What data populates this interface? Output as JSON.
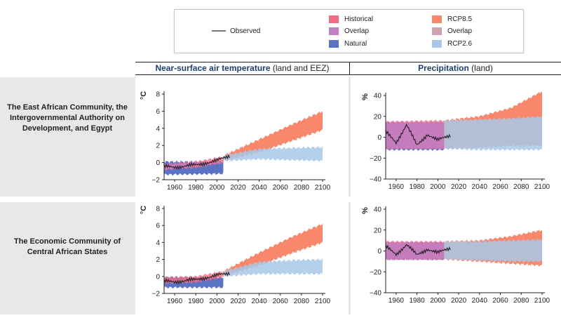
{
  "legend": {
    "observed": "Observed",
    "items": [
      {
        "label": "Historical",
        "color": "#f06d84"
      },
      {
        "label": "Overlap",
        "color": "#c37fc4"
      },
      {
        "label": "Natural",
        "color": "#5a73c4"
      },
      {
        "label": "RCP8.5",
        "color": "#f8876c"
      },
      {
        "label": "Overlap",
        "color": "#cfa2ad"
      },
      {
        "label": "RCP2.6",
        "color": "#a8c8e8"
      }
    ]
  },
  "columns": {
    "temperature": {
      "title": "Near-surface air temperature",
      "suffix": " (land and EEZ)"
    },
    "precipitation": {
      "title": "Precipitation",
      "suffix": " (land)"
    }
  },
  "rows": [
    {
      "name": "The East African Community, the Intergovernmental Authority on Development, and Egypt"
    },
    {
      "name": "The Economic Community of Central African States"
    }
  ],
  "chart_data": [
    {
      "id": "r1_temp",
      "type": "area",
      "row": "The East African Community, the Intergovernmental Authority on Development, and Egypt",
      "ylabel": "°C",
      "xlim": [
        1950,
        2100
      ],
      "ylim": [
        -2,
        8
      ],
      "xticks": [
        1960,
        1980,
        2000,
        2020,
        2040,
        2060,
        2080,
        2100
      ],
      "yticks": [
        -2,
        0,
        2,
        4,
        6,
        8
      ],
      "natural": {
        "x": [
          1950,
          2006
        ],
        "lower": [
          -1.4,
          -1.3
        ],
        "upper": [
          0.1,
          0.1
        ]
      },
      "historical": {
        "x": [
          1950,
          1980,
          2006
        ],
        "lower": [
          -0.8,
          -0.6,
          0.0
        ],
        "upper": [
          -0.2,
          0.1,
          0.7
        ]
      },
      "rcp85": {
        "x": [
          2006,
          2040,
          2070,
          2100
        ],
        "lower": [
          0.2,
          1.2,
          2.5,
          3.8
        ],
        "upper": [
          0.8,
          2.7,
          4.4,
          6.0
        ]
      },
      "rcp26": {
        "x": [
          2006,
          2040,
          2070,
          2100
        ],
        "lower": [
          0.2,
          0.4,
          0.3,
          0.2
        ],
        "upper": [
          0.8,
          1.6,
          1.7,
          1.8
        ]
      },
      "observed": {
        "x": [
          1950,
          1960,
          1970,
          1980,
          1990,
          2000,
          2012
        ],
        "y": [
          -0.5,
          -0.5,
          -0.4,
          -0.3,
          0.0,
          0.2,
          0.8
        ]
      }
    },
    {
      "id": "r1_precip",
      "type": "area",
      "row": "The East African Community, the Intergovernmental Authority on Development, and Egypt",
      "ylabel": "%",
      "xlim": [
        1950,
        2100
      ],
      "ylim": [
        -40,
        40
      ],
      "xticks": [
        1960,
        1980,
        2000,
        2020,
        2040,
        2060,
        2080,
        2100
      ],
      "yticks": [
        -40,
        -20,
        0,
        20,
        40
      ],
      "natural": {
        "x": [
          1950,
          2006
        ],
        "lower": [
          -12,
          -12
        ],
        "upper": [
          14,
          14
        ]
      },
      "historical": {
        "x": [
          1950,
          2006
        ],
        "lower": [
          -11,
          -11
        ],
        "upper": [
          15,
          16
        ]
      },
      "rcp85": {
        "x": [
          2006,
          2040,
          2070,
          2100
        ],
        "lower": [
          -11,
          -10,
          -8,
          -8
        ],
        "upper": [
          16,
          20,
          28,
          44
        ]
      },
      "rcp26": {
        "x": [
          2006,
          2040,
          2070,
          2100
        ],
        "lower": [
          -11,
          -12,
          -12,
          -12
        ],
        "upper": [
          16,
          17,
          18,
          20
        ]
      },
      "observed": {
        "x": [
          1950,
          1960,
          1970,
          1980,
          1990,
          2000,
          2012
        ],
        "y": [
          5,
          -5,
          12,
          -8,
          3,
          -3,
          2
        ]
      }
    },
    {
      "id": "r2_temp",
      "type": "area",
      "row": "The Economic Community of Central African States",
      "ylabel": "°C",
      "xlim": [
        1950,
        2100
      ],
      "ylim": [
        -2,
        8
      ],
      "xticks": [
        1960,
        1980,
        2000,
        2020,
        2040,
        2060,
        2080,
        2100
      ],
      "yticks": [
        -2,
        0,
        2,
        4,
        6,
        8
      ],
      "natural": {
        "x": [
          1950,
          2006
        ],
        "lower": [
          -1.3,
          -1.3
        ],
        "upper": [
          -0.1,
          -0.1
        ]
      },
      "historical": {
        "x": [
          1950,
          1980,
          2006
        ],
        "lower": [
          -0.8,
          -0.7,
          -0.1
        ],
        "upper": [
          -0.1,
          0.0,
          0.6
        ]
      },
      "rcp85": {
        "x": [
          2006,
          2040,
          2070,
          2100
        ],
        "lower": [
          0.0,
          1.3,
          2.7,
          4.0
        ],
        "upper": [
          0.6,
          2.8,
          4.6,
          6.2
        ]
      },
      "rcp26": {
        "x": [
          2006,
          2040,
          2070,
          2100
        ],
        "lower": [
          0.0,
          0.3,
          0.3,
          0.3
        ],
        "upper": [
          0.6,
          1.7,
          1.9,
          2.0
        ]
      },
      "observed": {
        "x": [
          1950,
          1960,
          1970,
          1980,
          1990,
          2000,
          2012
        ],
        "y": [
          -0.6,
          -0.6,
          -0.5,
          -0.4,
          -0.1,
          0.1,
          0.4
        ]
      }
    },
    {
      "id": "r2_precip",
      "type": "area",
      "row": "The Economic Community of Central African States",
      "ylabel": "%",
      "xlim": [
        1950,
        2100
      ],
      "ylim": [
        -40,
        40
      ],
      "xticks": [
        1960,
        1980,
        2000,
        2020,
        2040,
        2060,
        2080,
        2100
      ],
      "yticks": [
        -40,
        -20,
        0,
        20,
        40
      ],
      "natural": {
        "x": [
          1950,
          2006
        ],
        "lower": [
          -8,
          -8
        ],
        "upper": [
          8,
          8
        ]
      },
      "historical": {
        "x": [
          1950,
          2006
        ],
        "lower": [
          -8,
          -8
        ],
        "upper": [
          9,
          9
        ]
      },
      "rcp85": {
        "x": [
          2006,
          2040,
          2070,
          2100
        ],
        "lower": [
          -8,
          -10,
          -12,
          -14
        ],
        "upper": [
          9,
          10,
          14,
          20
        ]
      },
      "rcp26": {
        "x": [
          2006,
          2040,
          2070,
          2100
        ],
        "lower": [
          -8,
          -9,
          -10,
          -10
        ],
        "upper": [
          9,
          9,
          10,
          11
        ]
      },
      "observed": {
        "x": [
          1950,
          1960,
          1970,
          1980,
          1990,
          2000,
          2012
        ],
        "y": [
          4,
          -3,
          6,
          -4,
          2,
          -2,
          3
        ]
      }
    }
  ]
}
